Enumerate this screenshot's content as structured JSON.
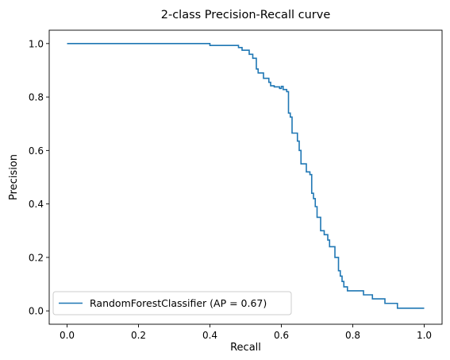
{
  "chart_data": {
    "type": "line",
    "title": "2-class Precision-Recall curve",
    "xlabel": "Recall",
    "ylabel": "Precision",
    "xlim": [
      -0.05,
      1.05
    ],
    "ylim": [
      -0.05,
      1.05
    ],
    "xticks": [
      0.0,
      0.2,
      0.4,
      0.6,
      0.8,
      1.0
    ],
    "yticks": [
      0.0,
      0.2,
      0.4,
      0.6,
      0.8,
      1.0
    ],
    "xtick_labels": [
      "0.0",
      "0.2",
      "0.4",
      "0.6",
      "0.8",
      "1.0"
    ],
    "ytick_labels": [
      "0.0",
      "0.2",
      "0.4",
      "0.6",
      "0.8",
      "1.0"
    ],
    "grid": false,
    "legend_position": "lower-left",
    "series": [
      {
        "name": "RandomForestClassifier (AP = 0.67)",
        "color": "#1f77b4",
        "drawstyle": "steps-post",
        "points": [
          [
            0.0,
            1.0
          ],
          [
            0.4,
            1.0
          ],
          [
            0.4,
            0.993
          ],
          [
            0.48,
            0.993
          ],
          [
            0.48,
            0.985
          ],
          [
            0.49,
            0.985
          ],
          [
            0.49,
            0.975
          ],
          [
            0.51,
            0.975
          ],
          [
            0.51,
            0.96
          ],
          [
            0.52,
            0.96
          ],
          [
            0.52,
            0.945
          ],
          [
            0.53,
            0.945
          ],
          [
            0.53,
            0.905
          ],
          [
            0.535,
            0.905
          ],
          [
            0.535,
            0.89
          ],
          [
            0.55,
            0.89
          ],
          [
            0.55,
            0.87
          ],
          [
            0.565,
            0.87
          ],
          [
            0.565,
            0.855
          ],
          [
            0.57,
            0.855
          ],
          [
            0.57,
            0.842
          ],
          [
            0.58,
            0.842
          ],
          [
            0.58,
            0.838
          ],
          [
            0.595,
            0.838
          ],
          [
            0.595,
            0.832
          ],
          [
            0.6,
            0.832
          ],
          [
            0.6,
            0.84
          ],
          [
            0.605,
            0.84
          ],
          [
            0.605,
            0.828
          ],
          [
            0.615,
            0.828
          ],
          [
            0.615,
            0.82
          ],
          [
            0.62,
            0.82
          ],
          [
            0.62,
            0.74
          ],
          [
            0.625,
            0.74
          ],
          [
            0.625,
            0.725
          ],
          [
            0.63,
            0.725
          ],
          [
            0.63,
            0.665
          ],
          [
            0.645,
            0.665
          ],
          [
            0.645,
            0.635
          ],
          [
            0.65,
            0.635
          ],
          [
            0.65,
            0.6
          ],
          [
            0.655,
            0.6
          ],
          [
            0.655,
            0.55
          ],
          [
            0.67,
            0.55
          ],
          [
            0.67,
            0.52
          ],
          [
            0.68,
            0.52
          ],
          [
            0.68,
            0.51
          ],
          [
            0.685,
            0.51
          ],
          [
            0.685,
            0.44
          ],
          [
            0.69,
            0.44
          ],
          [
            0.69,
            0.42
          ],
          [
            0.695,
            0.42
          ],
          [
            0.695,
            0.39
          ],
          [
            0.7,
            0.39
          ],
          [
            0.7,
            0.35
          ],
          [
            0.71,
            0.35
          ],
          [
            0.71,
            0.3
          ],
          [
            0.72,
            0.3
          ],
          [
            0.72,
            0.285
          ],
          [
            0.73,
            0.285
          ],
          [
            0.73,
            0.265
          ],
          [
            0.735,
            0.265
          ],
          [
            0.735,
            0.24
          ],
          [
            0.75,
            0.24
          ],
          [
            0.75,
            0.2
          ],
          [
            0.76,
            0.2
          ],
          [
            0.76,
            0.15
          ],
          [
            0.765,
            0.15
          ],
          [
            0.765,
            0.13
          ],
          [
            0.77,
            0.13
          ],
          [
            0.77,
            0.11
          ],
          [
            0.775,
            0.11
          ],
          [
            0.775,
            0.09
          ],
          [
            0.785,
            0.09
          ],
          [
            0.785,
            0.075
          ],
          [
            0.83,
            0.075
          ],
          [
            0.83,
            0.06
          ],
          [
            0.855,
            0.06
          ],
          [
            0.855,
            0.045
          ],
          [
            0.89,
            0.045
          ],
          [
            0.89,
            0.028
          ],
          [
            0.925,
            0.028
          ],
          [
            0.925,
            0.01
          ],
          [
            1.0,
            0.01
          ]
        ]
      }
    ]
  }
}
